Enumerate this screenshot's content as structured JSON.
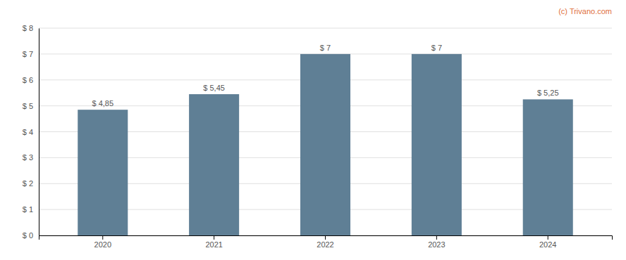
{
  "chart_data": {
    "type": "bar",
    "categories": [
      "2020",
      "2021",
      "2022",
      "2023",
      "2024"
    ],
    "values": [
      4.85,
      5.45,
      7.0,
      7.0,
      5.25
    ],
    "value_labels": [
      "$ 4,85",
      "$ 5,45",
      "$ 7",
      "$ 7",
      "$ 5,25"
    ],
    "data_labels": true,
    "color": "#5f7f95",
    "ylim": [
      0,
      8
    ],
    "yticks": [
      {
        "value": 0,
        "label": "$ 0"
      },
      {
        "value": 1,
        "label": "$ 1"
      },
      {
        "value": 2,
        "label": "$ 2"
      },
      {
        "value": 3,
        "label": "$ 3"
      },
      {
        "value": 4,
        "label": "$ 4"
      },
      {
        "value": 5,
        "label": "$ 5"
      },
      {
        "value": 6,
        "label": "$ 6"
      },
      {
        "value": 7,
        "label": "$ 7"
      },
      {
        "value": 8,
        "label": "$ 8"
      }
    ],
    "grid": true,
    "annotations": [
      {
        "text": "(c) Trivano.com",
        "color": "#e07040"
      }
    ]
  }
}
